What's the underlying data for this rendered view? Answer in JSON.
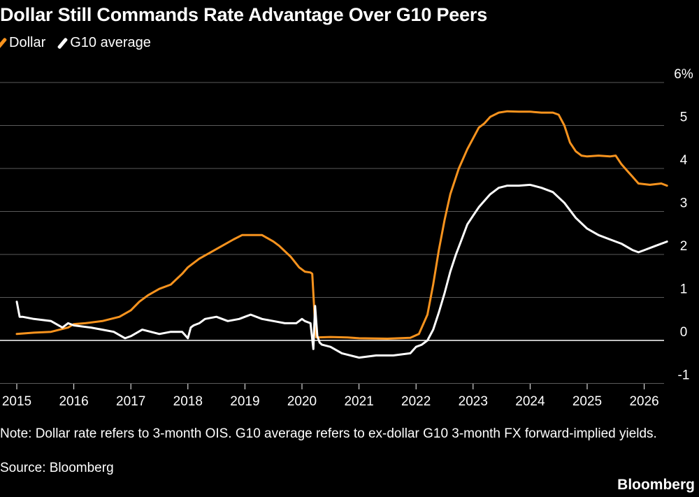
{
  "title": "Dollar Still Commands Rate Advantage Over G10 Peers",
  "note": "Note: Dollar rate refers to 3-month OIS. G10 average refers to ex-dollar G10 3-month FX forward-implied yields.",
  "source": "Source: Bloomberg",
  "brand": "Bloomberg",
  "colors": {
    "dollar": "#f7931e",
    "g10": "#ffffff",
    "background": "#000000",
    "grid": "#5a5a5a"
  },
  "chart_data": {
    "type": "line",
    "title": "Dollar Still Commands Rate Advantage Over G10 Peers",
    "xlabel": "",
    "ylabel": "",
    "x_ticks": [
      "2015",
      "2016",
      "2017",
      "2018",
      "2019",
      "2020",
      "2021",
      "2022",
      "2023",
      "2024",
      "2025",
      "2026"
    ],
    "y_ticks": [
      "6%",
      "5",
      "4",
      "3",
      "2",
      "1",
      "0",
      "-1"
    ],
    "y_tick_values": [
      6,
      5,
      4,
      3,
      2,
      1,
      0,
      -1
    ],
    "ylim": [
      -1,
      6
    ],
    "xlim": [
      2015.0,
      2026.7
    ],
    "grid": "horizontal",
    "legend_position": "top-left",
    "series": [
      {
        "name": "Dollar",
        "x": [
          2015.0,
          2015.3,
          2015.6,
          2015.9,
          2016.0,
          2016.2,
          2016.5,
          2016.8,
          2017.0,
          2017.15,
          2017.3,
          2017.5,
          2017.7,
          2017.9,
          2018.0,
          2018.2,
          2018.4,
          2018.6,
          2018.8,
          2018.95,
          2019.1,
          2019.3,
          2019.5,
          2019.6,
          2019.8,
          2019.95,
          2020.05,
          2020.15,
          2020.18,
          2020.22,
          2020.25,
          2020.5,
          2020.8,
          2021.0,
          2021.5,
          2021.9,
          2022.05,
          2022.2,
          2022.3,
          2022.4,
          2022.5,
          2022.6,
          2022.75,
          2022.9,
          2023.0,
          2023.1,
          2023.2,
          2023.3,
          2023.45,
          2023.6,
          2023.8,
          2024.0,
          2024.2,
          2024.4,
          2024.5,
          2024.6,
          2024.7,
          2024.8,
          2024.9,
          2025.0,
          2025.2,
          2025.4,
          2025.5,
          2025.6,
          2025.7,
          2025.8,
          2025.9,
          2026.1,
          2026.3,
          2026.4
        ],
        "y": [
          0.15,
          0.18,
          0.2,
          0.3,
          0.38,
          0.4,
          0.45,
          0.55,
          0.7,
          0.9,
          1.05,
          1.2,
          1.3,
          1.55,
          1.7,
          1.9,
          2.05,
          2.2,
          2.35,
          2.45,
          2.45,
          2.45,
          2.3,
          2.2,
          1.95,
          1.7,
          1.6,
          1.58,
          1.55,
          0.6,
          0.07,
          0.08,
          0.07,
          0.05,
          0.04,
          0.06,
          0.15,
          0.6,
          1.3,
          2.1,
          2.8,
          3.4,
          4.0,
          4.45,
          4.7,
          4.95,
          5.05,
          5.2,
          5.3,
          5.33,
          5.32,
          5.32,
          5.3,
          5.3,
          5.25,
          5.0,
          4.6,
          4.4,
          4.3,
          4.28,
          4.3,
          4.28,
          4.3,
          4.1,
          3.95,
          3.8,
          3.65,
          3.62,
          3.65,
          3.6
        ]
      },
      {
        "name": "G10 average",
        "x": [
          2015.0,
          2015.05,
          2015.1,
          2015.3,
          2015.6,
          2015.8,
          2015.9,
          2016.0,
          2016.3,
          2016.5,
          2016.7,
          2016.9,
          2017.0,
          2017.2,
          2017.5,
          2017.7,
          2017.9,
          2018.0,
          2018.05,
          2018.1,
          2018.2,
          2018.3,
          2018.5,
          2018.7,
          2018.9,
          2019.0,
          2019.1,
          2019.3,
          2019.5,
          2019.7,
          2019.9,
          2020.0,
          2020.05,
          2020.15,
          2020.2,
          2020.23,
          2020.27,
          2020.31,
          2020.35,
          2020.5,
          2020.7,
          2021.0,
          2021.3,
          2021.6,
          2021.9,
          2022.0,
          2022.1,
          2022.2,
          2022.3,
          2022.4,
          2022.5,
          2022.6,
          2022.7,
          2022.8,
          2022.9,
          2023.0,
          2023.1,
          2023.2,
          2023.3,
          2023.45,
          2023.6,
          2023.8,
          2024.0,
          2024.2,
          2024.4,
          2024.6,
          2024.8,
          2025.0,
          2025.2,
          2025.4,
          2025.6,
          2025.8,
          2025.9,
          2026.0,
          2026.2,
          2026.4
        ],
        "y": [
          0.9,
          0.55,
          0.55,
          0.5,
          0.45,
          0.3,
          0.4,
          0.35,
          0.3,
          0.25,
          0.2,
          0.05,
          0.1,
          0.25,
          0.15,
          0.2,
          0.2,
          0.05,
          0.3,
          0.35,
          0.4,
          0.5,
          0.55,
          0.45,
          0.5,
          0.55,
          0.6,
          0.5,
          0.45,
          0.4,
          0.4,
          0.5,
          0.45,
          0.4,
          -0.2,
          0.8,
          0.1,
          -0.05,
          -0.1,
          -0.15,
          -0.3,
          -0.4,
          -0.35,
          -0.35,
          -0.3,
          -0.15,
          -0.1,
          0.0,
          0.25,
          0.65,
          1.1,
          1.6,
          2.0,
          2.35,
          2.7,
          2.9,
          3.1,
          3.25,
          3.4,
          3.55,
          3.6,
          3.6,
          3.62,
          3.55,
          3.45,
          3.2,
          2.85,
          2.6,
          2.45,
          2.35,
          2.25,
          2.1,
          2.05,
          2.1,
          2.2,
          2.3
        ]
      }
    ]
  }
}
